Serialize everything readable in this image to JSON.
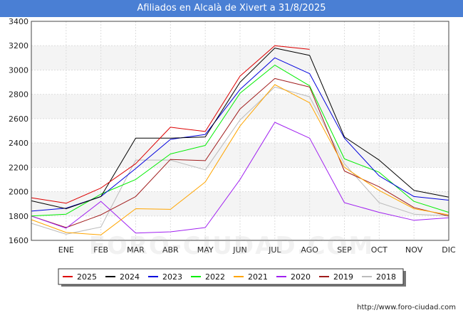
{
  "chart_data": {
    "type": "line",
    "title": "Afiliados en Alcalà de Xivert a 31/8/2025",
    "categories": [
      "",
      "ENE",
      "FEB",
      "MAR",
      "ABR",
      "MAY",
      "JUN",
      "JUL",
      "AGO",
      "SEP",
      "OCT",
      "NOV",
      "DIC"
    ],
    "ylim": [
      1600,
      3400
    ],
    "yticks": [
      1600,
      1800,
      2000,
      2200,
      2400,
      2600,
      2800,
      3000,
      3200,
      3400
    ],
    "grid": true,
    "legend_position": "bottom",
    "series": [
      {
        "name": "2025",
        "color": "#dd0000",
        "values": [
          1950,
          1905,
          2030,
          2230,
          2530,
          2495,
          2950,
          3200,
          3170,
          null,
          null,
          null,
          null
        ]
      },
      {
        "name": "2024",
        "color": "#000000",
        "values": [
          1925,
          1860,
          1960,
          2440,
          2440,
          2450,
          2900,
          3180,
          3120,
          2450,
          2260,
          2010,
          1955
        ]
      },
      {
        "name": "2023",
        "color": "#0000dd",
        "values": [
          1840,
          1865,
          1960,
          2190,
          2430,
          2470,
          2840,
          3100,
          2970,
          2440,
          2130,
          1960,
          1930
        ]
      },
      {
        "name": "2022",
        "color": "#00ee00",
        "values": [
          1800,
          1815,
          1980,
          2100,
          2310,
          2380,
          2810,
          3040,
          2870,
          2270,
          2160,
          1920,
          1830
        ]
      },
      {
        "name": "2021",
        "color": "#ffa500",
        "values": [
          1770,
          1665,
          1645,
          1860,
          1855,
          2080,
          2540,
          2880,
          2730,
          2200,
          2010,
          1860,
          1810
        ]
      },
      {
        "name": "2020",
        "color": "#a020f0",
        "values": [
          1800,
          1700,
          1920,
          1660,
          1670,
          1705,
          2100,
          2570,
          2440,
          1910,
          1830,
          1765,
          1785
        ]
      },
      {
        "name": "2019",
        "color": "#a01c1c",
        "values": [
          1800,
          1705,
          1810,
          1960,
          2265,
          2255,
          2680,
          2930,
          2860,
          2170,
          2040,
          1870,
          1800
        ]
      },
      {
        "name": "2018",
        "color": "#bbbbbb",
        "values": [
          1740,
          1650,
          1710,
          2260,
          2260,
          2180,
          2590,
          2860,
          2780,
          2230,
          1910,
          1815,
          1800
        ]
      }
    ]
  },
  "watermark": "FORO-CIUDAD.COM",
  "source": "http://www.foro-ciudad.com"
}
